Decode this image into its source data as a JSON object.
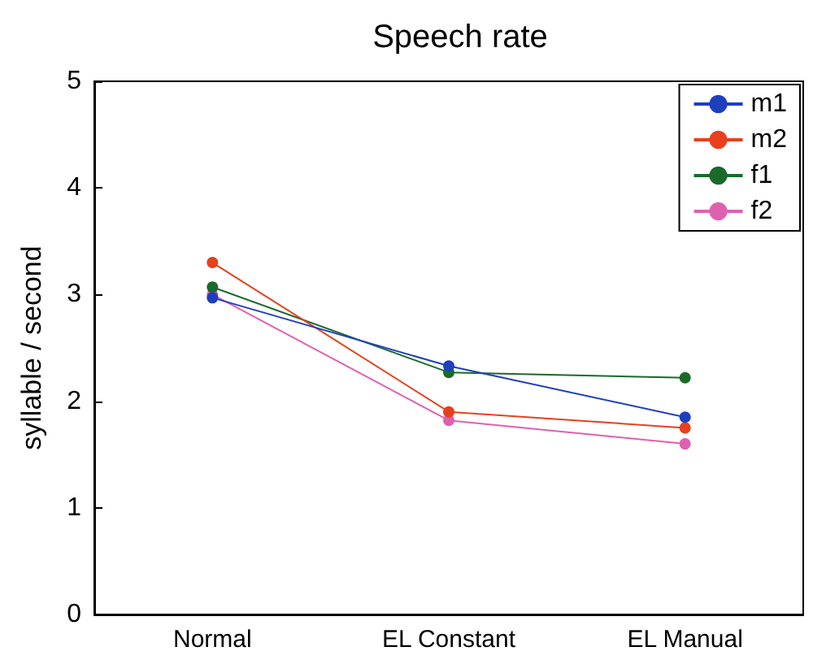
{
  "chart_data": {
    "type": "line",
    "title": "Speech rate",
    "ylabel": "syllable / second",
    "categories": [
      "Normal",
      "EL Constant",
      "EL Manual"
    ],
    "series": [
      {
        "name": "m1",
        "color": "#1f3fbf",
        "values": [
          2.97,
          2.33,
          1.85
        ]
      },
      {
        "name": "m2",
        "color": "#e8401c",
        "values": [
          3.3,
          1.9,
          1.75
        ]
      },
      {
        "name": "f1",
        "color": "#1a6a2a",
        "values": [
          3.07,
          2.27,
          2.22
        ]
      },
      {
        "name": "f2",
        "color": "#e060b0",
        "values": [
          3.0,
          1.82,
          1.6
        ]
      }
    ],
    "ylim": [
      0,
      5
    ],
    "yticks": [
      0,
      1,
      2,
      3,
      4,
      5
    ],
    "grid": false,
    "legend": "top right",
    "marker": "circle",
    "line_style": "solid"
  }
}
